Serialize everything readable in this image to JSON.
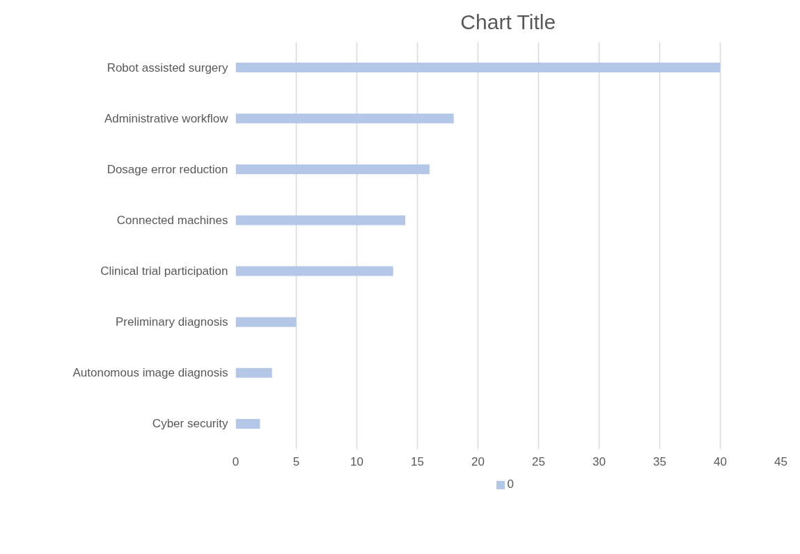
{
  "chart_data": {
    "type": "bar",
    "orientation": "horizontal",
    "title": "Chart Title",
    "categories": [
      "Robot assisted surgery",
      "Administrative workflow",
      "Dosage error reduction",
      "Connected machines",
      "Clinical trial participation",
      "Preliminary diagnosis",
      "Autonomous image diagnosis",
      "Cyber security"
    ],
    "series": [
      {
        "name": "0",
        "color": "#b4c7e7",
        "values": [
          40,
          18,
          16,
          14,
          13,
          5,
          3,
          2
        ]
      }
    ],
    "xlim": [
      0,
      45
    ],
    "xticks": [
      0,
      5,
      10,
      15,
      20,
      25,
      30,
      35,
      40,
      45
    ],
    "grid": "x",
    "legend": "bottom"
  }
}
